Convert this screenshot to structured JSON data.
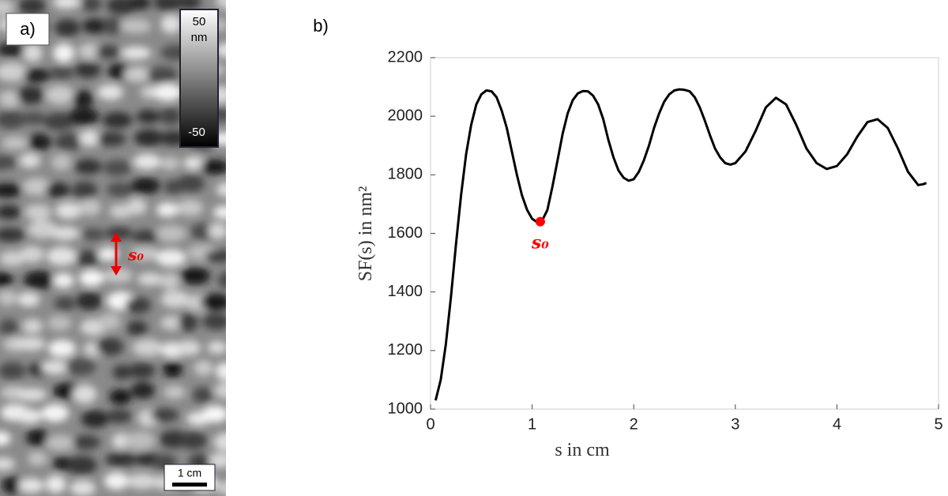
{
  "panel_a": {
    "label": "a)",
    "colorbar": {
      "top": "50",
      "unit": "nm",
      "bottom": "-50"
    },
    "scale_bar": "1 cm",
    "marker": "s₀"
  },
  "chart_data": {
    "type": "line",
    "label": "b)",
    "xlabel": "s in cm",
    "ylabel": "SF(s) in nm²",
    "color": "#000000",
    "x": [
      0.05,
      0.1,
      0.15,
      0.2,
      0.25,
      0.3,
      0.35,
      0.4,
      0.45,
      0.5,
      0.55,
      0.6,
      0.65,
      0.7,
      0.75,
      0.8,
      0.85,
      0.9,
      0.95,
      1.0,
      1.05,
      1.1,
      1.15,
      1.2,
      1.25,
      1.3,
      1.35,
      1.4,
      1.45,
      1.5,
      1.55,
      1.6,
      1.65,
      1.7,
      1.75,
      1.8,
      1.85,
      1.9,
      1.95,
      2.0,
      2.05,
      2.1,
      2.15,
      2.2,
      2.25,
      2.3,
      2.35,
      2.4,
      2.45,
      2.5,
      2.55,
      2.6,
      2.65,
      2.7,
      2.75,
      2.8,
      2.85,
      2.9,
      2.95,
      3.0,
      3.1,
      3.2,
      3.3,
      3.4,
      3.5,
      3.6,
      3.7,
      3.8,
      3.9,
      4.0,
      4.1,
      4.2,
      4.3,
      4.4,
      4.5,
      4.6,
      4.7,
      4.8,
      4.85,
      4.88
    ],
    "values": [
      1030,
      1100,
      1220,
      1380,
      1560,
      1730,
      1870,
      1970,
      2040,
      2075,
      2088,
      2085,
      2065,
      2020,
      1960,
      1880,
      1800,
      1730,
      1680,
      1650,
      1638,
      1645,
      1680,
      1760,
      1850,
      1940,
      2010,
      2055,
      2078,
      2086,
      2085,
      2070,
      2040,
      1990,
      1920,
      1860,
      1815,
      1790,
      1780,
      1785,
      1810,
      1850,
      1900,
      1960,
      2010,
      2050,
      2075,
      2088,
      2092,
      2090,
      2085,
      2065,
      2030,
      1985,
      1935,
      1890,
      1860,
      1840,
      1835,
      1840,
      1880,
      1950,
      2030,
      2063,
      2040,
      1970,
      1890,
      1840,
      1820,
      1830,
      1870,
      1930,
      1980,
      1990,
      1960,
      1890,
      1810,
      1765,
      1768,
      1772
    ],
    "xlim": [
      0,
      5
    ],
    "xticks": [
      0,
      1,
      2,
      3,
      4,
      5
    ],
    "ylim": [
      1000,
      2200
    ],
    "yticks": [
      1000,
      1200,
      1400,
      1600,
      1800,
      2000,
      2200
    ],
    "marker": {
      "x": 1.08,
      "y": 1640,
      "label": "s₀",
      "color": "#ff0000"
    }
  }
}
